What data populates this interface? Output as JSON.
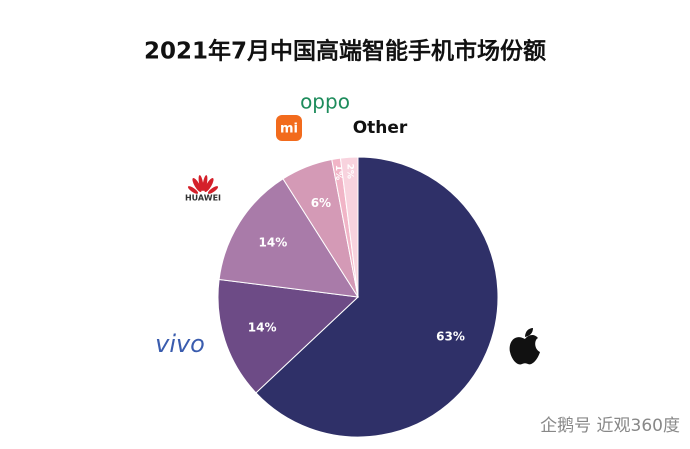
{
  "chart_data": {
    "type": "pie",
    "title": "2021年7月中国高端智能手机市场份额",
    "categories": [
      null,
      "vivo",
      "HUAWEI",
      "mi",
      "oppo",
      "Other"
    ],
    "values": [
      63,
      14,
      14,
      6,
      1,
      2
    ],
    "value_labels": [
      "63%",
      "14%",
      "14%",
      "6%",
      "1%",
      "2%"
    ],
    "colors": [
      "#2f3068",
      "#6d4b86",
      "#a97ba9",
      "#d49ab6",
      "#f1b5c7",
      "#f8d3de"
    ]
  },
  "watermark": "企鹅号 近观360度"
}
